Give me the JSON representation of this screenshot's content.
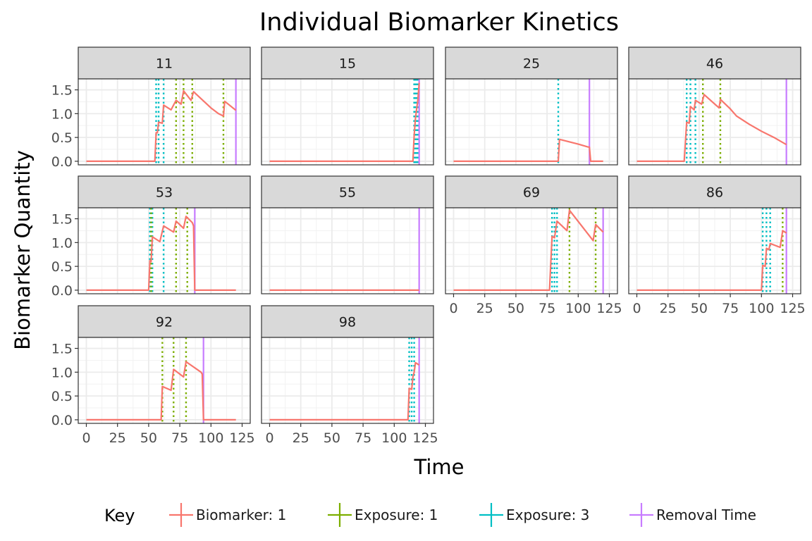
{
  "chart_data": {
    "type": "line",
    "title": "Individual Biomarker Kinetics",
    "xlabel": "Time",
    "ylabel": "Biomarker Quantity",
    "xlim": [
      0,
      125
    ],
    "ylim": [
      0,
      1.65
    ],
    "x_ticks": [
      "0",
      "25",
      "50",
      "75",
      "100",
      "125"
    ],
    "y_ticks": [
      "0.0",
      "0.5",
      "1.0",
      "1.5"
    ],
    "grid": true,
    "legend_position": "bottom",
    "legend_title": "Key",
    "legend": [
      {
        "label": "Biomarker: 1",
        "color": "#F8766D",
        "style": "solid"
      },
      {
        "label": "Exposure: 1",
        "color": "#7CAE00",
        "style": "dotted"
      },
      {
        "label": "Exposure: 3",
        "color": "#00BFC4",
        "style": "dotted"
      },
      {
        "label": "Removal Time",
        "color": "#C77CFF",
        "style": "solid"
      }
    ],
    "panels": [
      {
        "id": "11",
        "series": [
          [
            0,
            0
          ],
          [
            55,
            0
          ],
          [
            56,
            0.6
          ],
          [
            57,
            0.6
          ],
          [
            58,
            0.82
          ],
          [
            61,
            0.8
          ],
          [
            62,
            1.18
          ],
          [
            68,
            1.08
          ],
          [
            72,
            1.28
          ],
          [
            76,
            1.2
          ],
          [
            78,
            1.48
          ],
          [
            84,
            1.28
          ],
          [
            86,
            1.46
          ],
          [
            100,
            1.12
          ],
          [
            106,
            1.0
          ],
          [
            110,
            0.95
          ],
          [
            111,
            1.26
          ],
          [
            120,
            1.07
          ]
        ],
        "exposure1": [
          72,
          78,
          85,
          110
        ],
        "exposure3": [
          56,
          58,
          62
        ],
        "removal": 120
      },
      {
        "id": "15",
        "series": [
          [
            0,
            0
          ],
          [
            115,
            0
          ],
          [
            116,
            0.55
          ],
          [
            117,
            0.9
          ],
          [
            118,
            1.1
          ],
          [
            119,
            1.3
          ],
          [
            120,
            1.65
          ]
        ],
        "exposure1": [],
        "exposure3": [
          116,
          117,
          118,
          119
        ],
        "removal": 120
      },
      {
        "id": "25",
        "series": [
          [
            0,
            0
          ],
          [
            84,
            0
          ],
          [
            85,
            0.46
          ],
          [
            100,
            0.36
          ],
          [
            108,
            0.3
          ],
          [
            109,
            0.3
          ],
          [
            110,
            0
          ],
          [
            120,
            0
          ]
        ],
        "exposure1": [],
        "exposure3": [
          84
        ],
        "removal": 109
      },
      {
        "id": "46",
        "series": [
          [
            0,
            0
          ],
          [
            38,
            0
          ],
          [
            40,
            0.82
          ],
          [
            42,
            0.8
          ],
          [
            43,
            1.15
          ],
          [
            46,
            1.08
          ],
          [
            47,
            1.28
          ],
          [
            52,
            1.2
          ],
          [
            54,
            1.4
          ],
          [
            66,
            1.12
          ],
          [
            67,
            1.3
          ],
          [
            75,
            1.1
          ],
          [
            80,
            0.95
          ],
          [
            90,
            0.78
          ],
          [
            100,
            0.63
          ],
          [
            110,
            0.5
          ],
          [
            120,
            0.35
          ]
        ],
        "exposure1": [
          53,
          67
        ],
        "exposure3": [
          40,
          43,
          47
        ],
        "removal": 120
      },
      {
        "id": "53",
        "series": [
          [
            0,
            0
          ],
          [
            50,
            0
          ],
          [
            51,
            0.62
          ],
          [
            52,
            0.6
          ],
          [
            53,
            1.12
          ],
          [
            59,
            1.02
          ],
          [
            62,
            1.35
          ],
          [
            70,
            1.22
          ],
          [
            72,
            1.45
          ],
          [
            78,
            1.3
          ],
          [
            80,
            1.55
          ],
          [
            85,
            1.42
          ],
          [
            86,
            1.35
          ],
          [
            87,
            0
          ],
          [
            120,
            0
          ]
        ],
        "exposure1": [
          52,
          72,
          81
        ],
        "exposure3": [
          51,
          53,
          62
        ],
        "removal": 87
      },
      {
        "id": "55",
        "series": [
          [
            0,
            0
          ],
          [
            120,
            0
          ]
        ],
        "exposure1": [],
        "exposure3": [],
        "removal": 120
      },
      {
        "id": "69",
        "series": [
          [
            0,
            0
          ],
          [
            77,
            0
          ],
          [
            79,
            1.13
          ],
          [
            81,
            1.1
          ],
          [
            83,
            1.45
          ],
          [
            91,
            1.25
          ],
          [
            93,
            1.68
          ],
          [
            112,
            1.04
          ],
          [
            114,
            1.38
          ],
          [
            120,
            1.22
          ]
        ],
        "exposure1": [
          93,
          114
        ],
        "exposure3": [
          79,
          81,
          83
        ],
        "removal": 120
      },
      {
        "id": "86",
        "series": [
          [
            0,
            0
          ],
          [
            100,
            0
          ],
          [
            101,
            0.52
          ],
          [
            103,
            0.5
          ],
          [
            104,
            0.88
          ],
          [
            106,
            0.85
          ],
          [
            107,
            0.98
          ],
          [
            115,
            0.9
          ],
          [
            117,
            1.25
          ],
          [
            120,
            1.2
          ]
        ],
        "exposure1": [
          117
        ],
        "exposure3": [
          101,
          104,
          107
        ],
        "removal": 120
      },
      {
        "id": "92",
        "series": [
          [
            0,
            0
          ],
          [
            60,
            0
          ],
          [
            61,
            0.7
          ],
          [
            68,
            0.62
          ],
          [
            70,
            1.06
          ],
          [
            78,
            0.9
          ],
          [
            80,
            1.22
          ],
          [
            92,
            1.0
          ],
          [
            93,
            0.96
          ],
          [
            94,
            0
          ],
          [
            120,
            0
          ]
        ],
        "exposure1": [
          61,
          70,
          80
        ],
        "exposure3": [],
        "removal": 94
      },
      {
        "id": "98",
        "series": [
          [
            0,
            0
          ],
          [
            111,
            0
          ],
          [
            112,
            0.66
          ],
          [
            114,
            0.64
          ],
          [
            115,
            0.9
          ],
          [
            116,
            1.0
          ],
          [
            117,
            1.2
          ],
          [
            120,
            1.15
          ]
        ],
        "exposure1": [],
        "exposure3": [
          112,
          114,
          116
        ],
        "removal": 120
      }
    ]
  }
}
